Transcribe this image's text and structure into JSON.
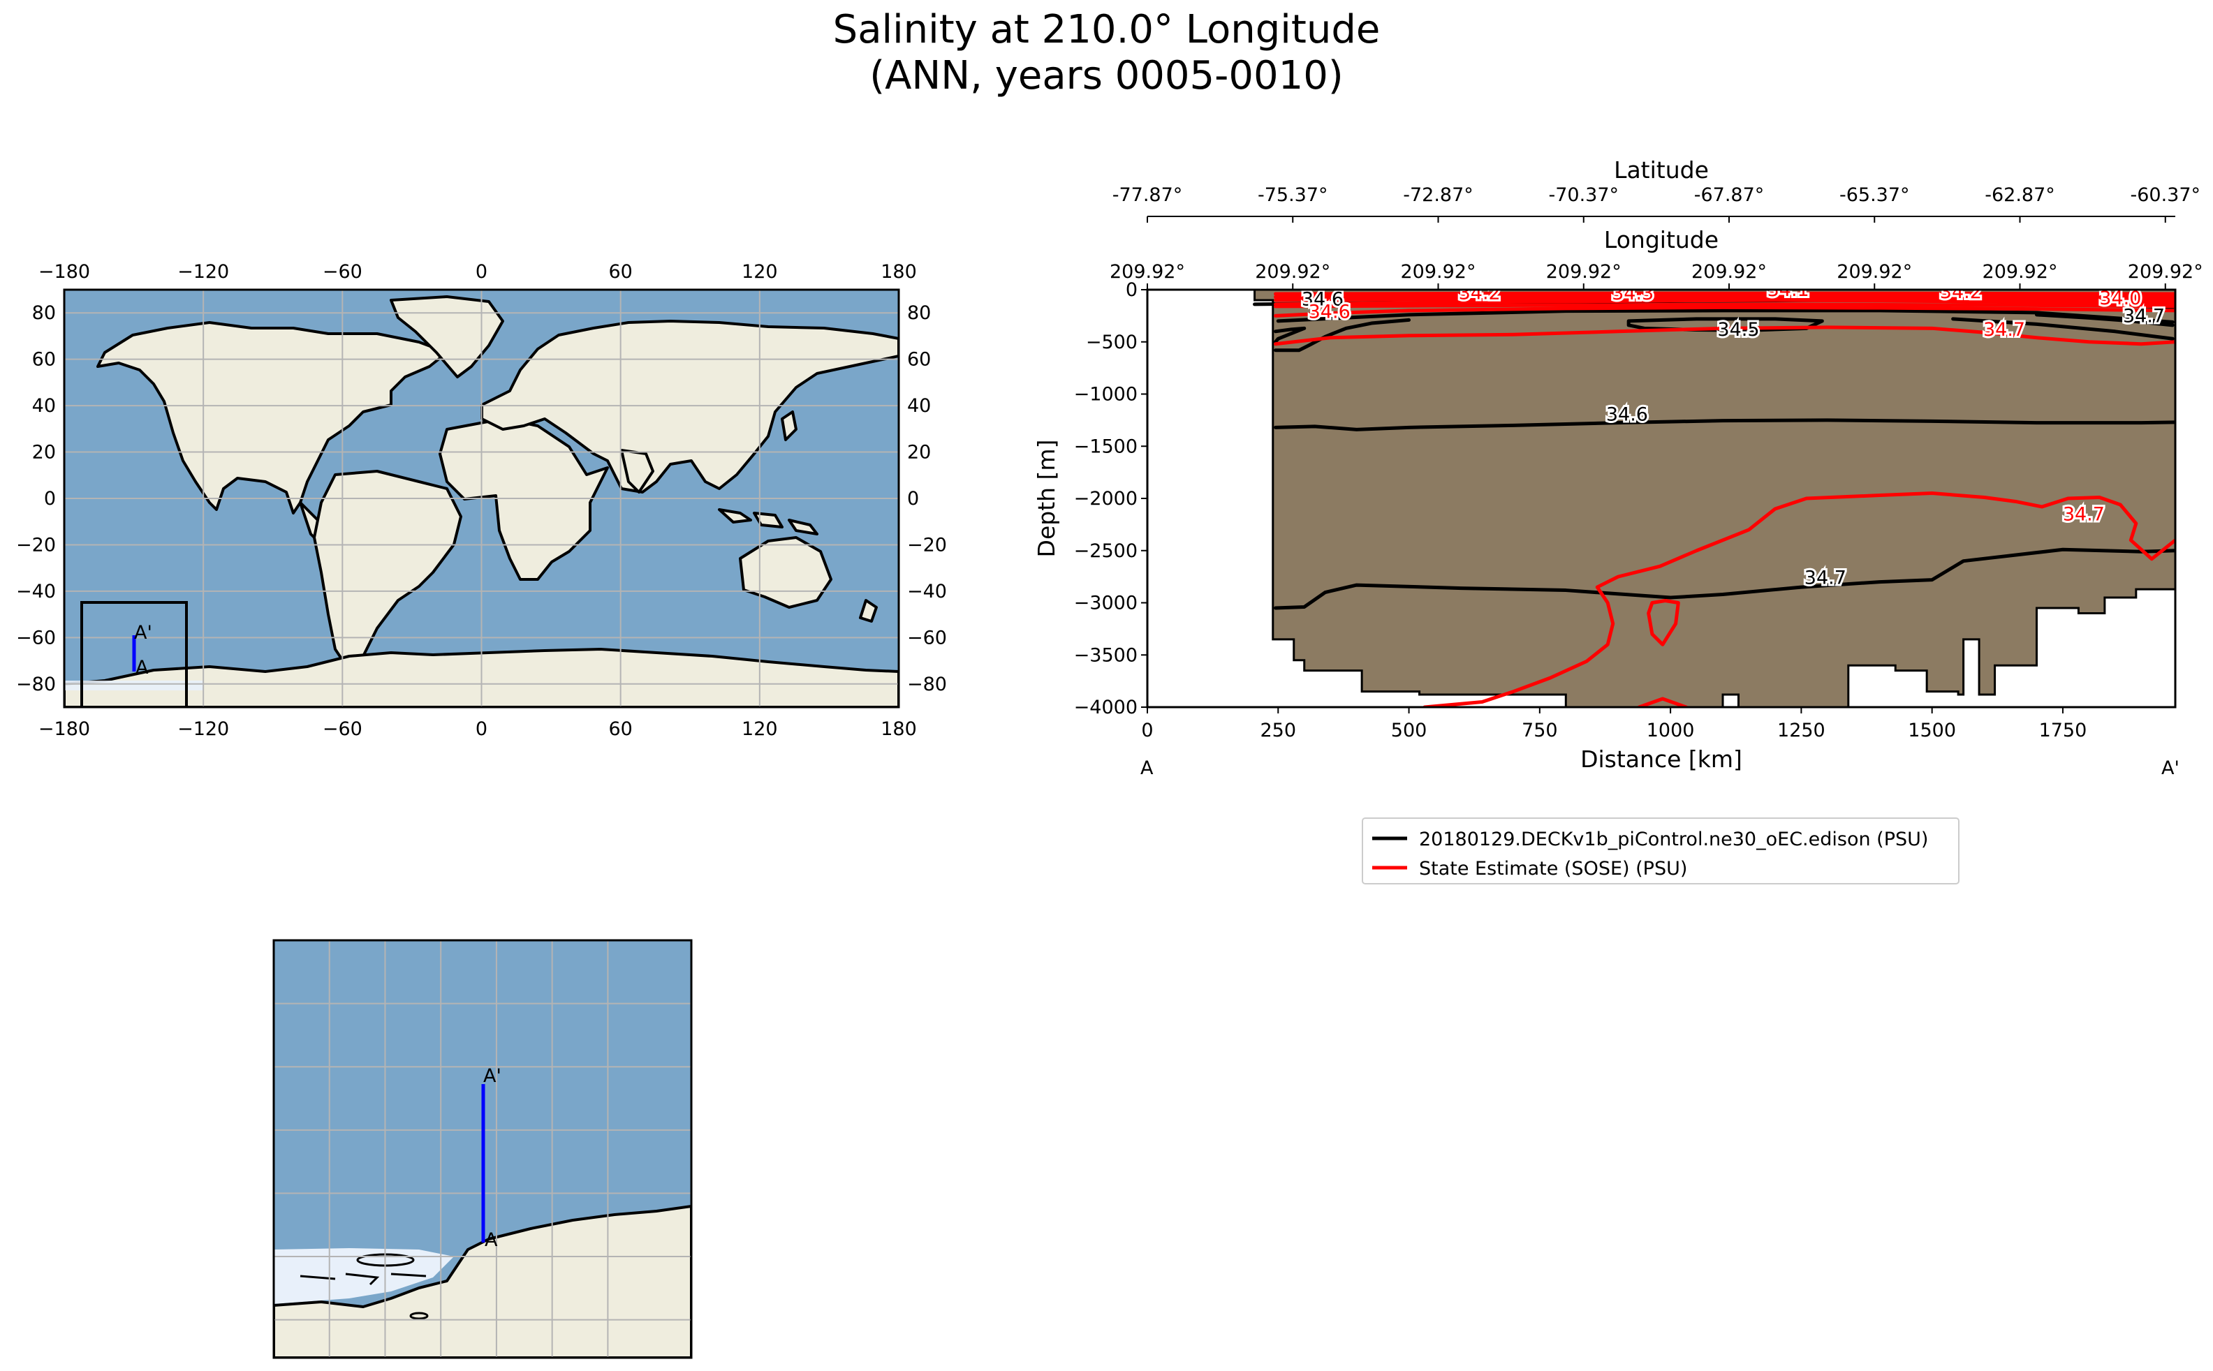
{
  "title": {
    "line1": "Salinity at 210.0° Longitude",
    "line2": "(ANN, years 0005-0010)"
  },
  "colors": {
    "ocean": "#7aa6c9",
    "land": "#efedde",
    "ice": "#e8f0fa",
    "grid": "#b4b4b4",
    "transect": "#0000ff",
    "topography": "#8c7b62",
    "model_line": "#000000",
    "obs_line": "#ff0000"
  },
  "world_map": {
    "lon_ticks": [
      "−180",
      "−120",
      "−60",
      "0",
      "60",
      "120",
      "180"
    ],
    "lat_ticks": [
      "80",
      "60",
      "40",
      "20",
      "0",
      "−20",
      "−40",
      "−60",
      "−80"
    ],
    "start_label": "A",
    "end_label": "A'"
  },
  "inset_map": {
    "start_label": "A",
    "end_label": "A'"
  },
  "chart_data": {
    "type": "contour_section",
    "xlabel": "Distance [km]",
    "ylabel": "Depth [m]",
    "xlim": [
      0,
      1965
    ],
    "ylim": [
      -4000,
      0
    ],
    "x_ticks": [
      "0",
      "250",
      "500",
      "750",
      "1000",
      "1250",
      "1500",
      "1750"
    ],
    "x_tick_values": [
      0,
      250,
      500,
      750,
      1000,
      1250,
      1500,
      1750
    ],
    "y_ticks": [
      "0",
      "−500",
      "−1000",
      "−1500",
      "−2000",
      "−2500",
      "−3000",
      "−3500",
      "−4000"
    ],
    "y_tick_values": [
      0,
      -500,
      -1000,
      -1500,
      -2000,
      -2500,
      -3000,
      -3500,
      -4000
    ],
    "top_axes": {
      "latitude_title": "Latitude",
      "latitude_ticks": [
        "-77.87°",
        "-75.37°",
        "-72.87°",
        "-70.37°",
        "-67.87°",
        "-65.37°",
        "-62.87°",
        "-60.37°"
      ],
      "longitude_title": "Longitude",
      "longitude_ticks": [
        "209.92°",
        "209.92°",
        "209.92°",
        "209.92°",
        "209.92°",
        "209.92°",
        "209.92°",
        "209.92°"
      ],
      "tick_positions_km": [
        0,
        278,
        556,
        834,
        1112,
        1390,
        1668,
        1946
      ]
    },
    "endpoint_labels": {
      "start": "A",
      "end": "A'"
    },
    "topography": [
      [
        0,
        0
      ],
      [
        205,
        0
      ],
      [
        205,
        -100
      ],
      [
        240,
        -100
      ],
      [
        240,
        -3350
      ],
      [
        280,
        -3350
      ],
      [
        280,
        -3550
      ],
      [
        300,
        -3550
      ],
      [
        300,
        -3650
      ],
      [
        410,
        -3650
      ],
      [
        410,
        -3850
      ],
      [
        520,
        -3850
      ],
      [
        520,
        -3880
      ],
      [
        800,
        -3880
      ],
      [
        800,
        -4000
      ],
      [
        1100,
        -4000
      ],
      [
        1100,
        -3880
      ],
      [
        1130,
        -3880
      ],
      [
        1130,
        -4000
      ],
      [
        1340,
        -4000
      ],
      [
        1340,
        -3600
      ],
      [
        1430,
        -3600
      ],
      [
        1430,
        -3650
      ],
      [
        1490,
        -3650
      ],
      [
        1490,
        -3850
      ],
      [
        1550,
        -3850
      ],
      [
        1550,
        -3880
      ],
      [
        1560,
        -3880
      ],
      [
        1560,
        -3350
      ],
      [
        1590,
        -3350
      ],
      [
        1590,
        -3880
      ],
      [
        1620,
        -3880
      ],
      [
        1620,
        -3600
      ],
      [
        1700,
        -3600
      ],
      [
        1700,
        -3050
      ],
      [
        1780,
        -3050
      ],
      [
        1780,
        -3100
      ],
      [
        1830,
        -3100
      ],
      [
        1830,
        -2950
      ],
      [
        1890,
        -2950
      ],
      [
        1890,
        -2870
      ],
      [
        1965,
        -2870
      ],
      [
        1965,
        0
      ]
    ],
    "series": [
      {
        "name": "20180129.DECKv1b_piControl.ne30_oEC.edison (PSU)",
        "color": "#000000",
        "contours": [
          {
            "level": "34.6",
            "label_at": [
              335,
              -150
            ],
            "points": [
              [
                205,
                -140
              ],
              [
                400,
                -130
              ],
              [
                700,
                -120
              ],
              [
                1000,
                -110
              ],
              [
                1300,
                -100
              ],
              [
                1600,
                -110
              ],
              [
                1800,
                -140
              ],
              [
                1960,
                -170
              ]
            ]
          },
          {
            "level": "34.6",
            "points": [
              [
                250,
                -300
              ],
              [
                500,
                -240
              ],
              [
                800,
                -205
              ],
              [
                1100,
                -200
              ],
              [
                1400,
                -200
              ],
              [
                1700,
                -220
              ],
              [
                1960,
                -310
              ]
            ]
          },
          {
            "level": "34.7",
            "label_at": [
              1905,
              -310
            ],
            "points": [
              [
                1700,
                -240
              ],
              [
                1800,
                -270
              ],
              [
                1880,
                -300
              ],
              [
                1960,
                -340
              ]
            ]
          },
          {
            "level": "34.7",
            "points": [
              [
                1540,
                -280
              ],
              [
                1700,
                -330
              ],
              [
                1850,
                -400
              ],
              [
                1960,
                -470
              ]
            ]
          },
          {
            "level": "34.5",
            "label_at": [
              1130,
              -440
            ],
            "points": [
              [
                920,
                -300
              ],
              [
                1050,
                -280
              ],
              [
                1200,
                -280
              ],
              [
                1290,
                -300
              ],
              [
                1260,
                -370
              ],
              [
                1150,
                -390
              ],
              [
                1050,
                -385
              ],
              [
                950,
                -370
              ],
              [
                920,
                -340
              ],
              [
                920,
                -300
              ]
            ]
          },
          {
            "level": "34.5",
            "points": [
              [
                245,
                -400
              ],
              [
                275,
                -380
              ],
              [
                300,
                -370
              ],
              [
                270,
                -430
              ],
              [
                250,
                -470
              ],
              [
                245,
                -500
              ]
            ]
          },
          {
            "level": "34.6",
            "points": [
              [
                245,
                -580
              ],
              [
                290,
                -580
              ],
              [
                310,
                -530
              ],
              [
                340,
                -450
              ],
              [
                380,
                -370
              ],
              [
                430,
                -320
              ],
              [
                500,
                -290
              ]
            ]
          },
          {
            "level": "34.6",
            "label_at": [
              917,
              -1255
            ],
            "points": [
              [
                245,
                -1320
              ],
              [
                320,
                -1310
              ],
              [
                400,
                -1340
              ],
              [
                500,
                -1320
              ],
              [
                700,
                -1300
              ],
              [
                900,
                -1275
              ],
              [
                1100,
                -1255
              ],
              [
                1300,
                -1250
              ],
              [
                1500,
                -1260
              ],
              [
                1700,
                -1275
              ],
              [
                1900,
                -1275
              ],
              [
                1965,
                -1270
              ]
            ]
          },
          {
            "level": "34.7",
            "label_at": [
              1296,
              -2820
            ],
            "points": [
              [
                245,
                -3050
              ],
              [
                300,
                -3040
              ],
              [
                340,
                -2900
              ],
              [
                400,
                -2830
              ],
              [
                600,
                -2860
              ],
              [
                800,
                -2880
              ],
              [
                1000,
                -2950
              ],
              [
                1100,
                -2920
              ],
              [
                1250,
                -2850
              ],
              [
                1400,
                -2800
              ],
              [
                1500,
                -2780
              ],
              [
                1560,
                -2600
              ],
              [
                1750,
                -2490
              ],
              [
                1900,
                -2510
              ],
              [
                1965,
                -2500
              ]
            ]
          }
        ]
      },
      {
        "name": "State Estimate (SOSE) (PSU)",
        "color": "#ff0000",
        "contours": [
          {
            "level": "34.2",
            "label_at": [
              635,
              -90
            ],
            "points": [
              [
                245,
                -100
              ],
              [
                600,
                -90
              ],
              [
                900,
                -85
              ],
              [
                1200,
                -80
              ],
              [
                1500,
                -85
              ],
              [
                1800,
                -95
              ],
              [
                1965,
                -100
              ]
            ]
          },
          {
            "level": "34.3",
            "label_at": [
              928,
              -95
            ],
            "points": [
              [
                245,
                -140
              ],
              [
                600,
                -120
              ],
              [
                900,
                -110
              ],
              [
                1200,
                -100
              ],
              [
                1500,
                -110
              ],
              [
                1800,
                -125
              ],
              [
                1965,
                -130
              ]
            ]
          },
          {
            "level": "34.1",
            "label_at": [
              1225,
              -60
            ],
            "points": [
              [
                245,
                -70
              ],
              [
                700,
                -60
              ],
              [
                1200,
                -55
              ],
              [
                1700,
                -60
              ],
              [
                1965,
                -70
              ]
            ]
          },
          {
            "level": "34.2",
            "label_at": [
              1555,
              -80
            ],
            "points": [
              [
                245,
                -160
              ],
              [
                700,
                -150
              ],
              [
                1200,
                -140
              ],
              [
                1700,
                -150
              ],
              [
                1965,
                -160
              ]
            ]
          },
          {
            "level": "34.0",
            "label_at": [
              1860,
              -140
            ],
            "points": [
              [
                245,
                -40
              ],
              [
                800,
                -35
              ],
              [
                1400,
                -35
              ],
              [
                1965,
                -40
              ]
            ]
          },
          {
            "level": "34.6",
            "label_at": [
              348,
              -270
            ],
            "points": [
              [
                245,
                -250
              ],
              [
                350,
                -225
              ],
              [
                500,
                -200
              ],
              [
                800,
                -180
              ],
              [
                1100,
                -170
              ],
              [
                1400,
                -175
              ],
              [
                1700,
                -185
              ],
              [
                1965,
                -200
              ]
            ]
          },
          {
            "level": "34.7",
            "label_at": [
              1638,
              -440
            ],
            "points": [
              [
                245,
                -520
              ],
              [
                350,
                -460
              ],
              [
                500,
                -440
              ],
              [
                700,
                -430
              ],
              [
                900,
                -400
              ],
              [
                1100,
                -370
              ],
              [
                1300,
                -360
              ],
              [
                1500,
                -370
              ],
              [
                1600,
                -410
              ],
              [
                1700,
                -460
              ],
              [
                1800,
                -500
              ],
              [
                1900,
                -520
              ],
              [
                1965,
                -500
              ]
            ]
          },
          {
            "level": "34.7",
            "label_at": [
              1790,
              -2210
            ],
            "points": [
              [
                530,
                -4000
              ],
              [
                640,
                -3950
              ],
              [
                700,
                -3850
              ],
              [
                770,
                -3720
              ],
              [
                840,
                -3560
              ],
              [
                880,
                -3400
              ],
              [
                890,
                -3200
              ],
              [
                880,
                -3000
              ],
              [
                860,
                -2850
              ],
              [
                900,
                -2750
              ],
              [
                980,
                -2650
              ],
              [
                1050,
                -2500
              ],
              [
                1150,
                -2300
              ],
              [
                1200,
                -2100
              ],
              [
                1260,
                -2000
              ],
              [
                1400,
                -1970
              ],
              [
                1500,
                -1950
              ],
              [
                1600,
                -1990
              ],
              [
                1660,
                -2030
              ],
              [
                1710,
                -2080
              ],
              [
                1760,
                -2000
              ],
              [
                1820,
                -1990
              ],
              [
                1860,
                -2060
              ],
              [
                1890,
                -2240
              ],
              [
                1880,
                -2400
              ],
              [
                1920,
                -2580
              ],
              [
                1965,
                -2400
              ]
            ]
          },
          {
            "level": "34.7",
            "points": [
              [
                965,
                -3000
              ],
              [
                990,
                -2980
              ],
              [
                1015,
                -3000
              ],
              [
                1010,
                -3200
              ],
              [
                985,
                -3400
              ],
              [
                965,
                -3300
              ],
              [
                958,
                -3100
              ],
              [
                965,
                -3000
              ]
            ]
          },
          {
            "level": "34.7",
            "points": [
              [
                940,
                -4000
              ],
              [
                985,
                -3920
              ],
              [
                1030,
                -4000
              ]
            ]
          }
        ]
      }
    ],
    "legend": {
      "entries": [
        "20180129.DECKv1b_piControl.ne30_oEC.edison (PSU)",
        "State Estimate (SOSE) (PSU)"
      ],
      "placement": "below-right"
    }
  }
}
